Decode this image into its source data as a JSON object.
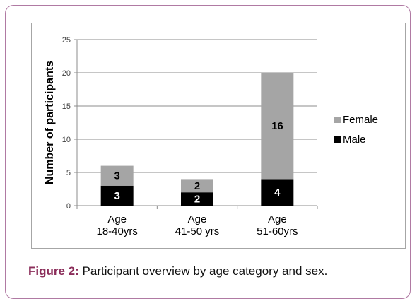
{
  "colors": {
    "female": "#a5a5a5",
    "male": "#000000",
    "frame_border": "#b07aa3",
    "caption_label": "#8b2d5a"
  },
  "chart_data": {
    "type": "bar",
    "stacked": true,
    "categories": [
      [
        "Age",
        "18-40yrs"
      ],
      [
        "Age",
        "41-50 yrs"
      ],
      [
        "Age",
        "51-60yrs"
      ]
    ],
    "series": [
      {
        "name": "Male",
        "values": [
          3,
          2,
          4
        ],
        "color": "#000000",
        "label_color": "#ffffff"
      },
      {
        "name": "Female",
        "values": [
          3,
          2,
          16
        ],
        "color": "#a5a5a5",
        "label_color": "#000000"
      }
    ],
    "ylabel": "Number of participants",
    "ylim": [
      0,
      25
    ],
    "yticks": [
      0,
      5,
      10,
      15,
      20,
      25
    ],
    "grid": true,
    "legend": {
      "placement": "right",
      "order": [
        "Female",
        "Male"
      ]
    }
  },
  "caption": {
    "label": "Figure 2:",
    "text": " Participant overview by age category and sex."
  }
}
